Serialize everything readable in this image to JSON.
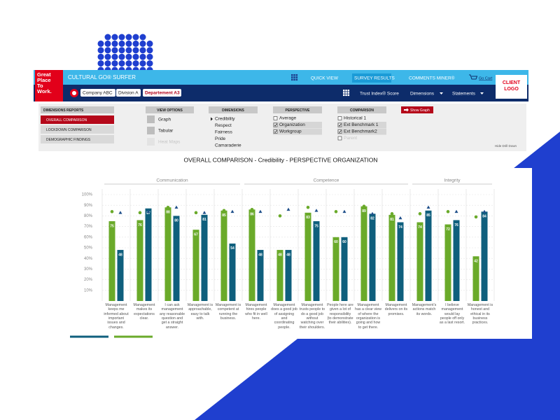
{
  "app": {
    "logo": [
      "Great",
      "Place",
      "To",
      "Work."
    ],
    "title": "CULTURAL GO® SURFER",
    "nav": [
      "QUICK VIEW",
      "SURVEY RESULTS",
      "COMMENTS MINER®"
    ],
    "cart": "Go Cart",
    "client_logo": [
      "CLIENT",
      "LOGO"
    ],
    "breadcrumbs": [
      "Company ABC",
      "Division A",
      "Departement A3"
    ],
    "subnav": [
      "Trust Index® Score",
      "Dimensions",
      "Statements"
    ],
    "reports": {
      "title": "DIMENSIONS REPORTS",
      "items": [
        "OVERALL COMPARISON",
        "LOCKDOWN COMPARISON",
        "DEMOGRAPHIC FINDINGS"
      ]
    },
    "view_options": {
      "title": "VIEW OPTIONS",
      "items": [
        "Graph",
        "Tabular",
        "Heat Maps"
      ]
    },
    "dimensions": {
      "title": "DIMENSIONS",
      "items": [
        "Credibility",
        "Respect",
        "Fairness",
        "Pride",
        "Camaraderie"
      ]
    },
    "perspective": {
      "title": "PERSPECTIVE",
      "items": [
        {
          "label": "Average",
          "checked": false
        },
        {
          "label": "Organization",
          "checked": true
        },
        {
          "label": "Workgroup",
          "checked": true
        }
      ]
    },
    "comparison": {
      "title": "COMPARISON",
      "items": [
        {
          "label": "Historical 1",
          "checked": false
        },
        {
          "label": "Ext Benchmark 1",
          "checked": true
        },
        {
          "label": "Ext Benchmark2",
          "checked": true
        },
        {
          "label": "Parent",
          "checked": false
        }
      ]
    },
    "show_graph": "Show Graph",
    "hide_drill_down": "Hide Drill Down"
  },
  "chart_data": {
    "type": "bar",
    "title": "OVERALL COMPARISON - Credibility - PERSPECTIVE ORGANIZATION",
    "groups": [
      {
        "label": "Communication",
        "categories": [
          "Management keeps me informed about important issues and changes.",
          "Management makes its expectations clear.",
          "I can ask management any reasonable question and get a straight answer.",
          "Management is approachable, easy to talk with.",
          "Management is competent at running the business."
        ]
      },
      {
        "label": "Competence",
        "categories": [
          "Management hires people who fit in well here.",
          "Management does a good job of assigning and coordinating people.",
          "Management trusts people to do a good job without watching over their shoulders.",
          "People here are given a lot of responsibility (to demonstrate their abilities).",
          "Management has a clear view of where the organization is going and how to get there.",
          "Management delivers on its promises."
        ]
      },
      {
        "label": "Integrity",
        "categories": [
          "Management's actions match its words.",
          "I believe management would lay people off only as a last resort.",
          "Management is honest and ethical in its business practices."
        ]
      }
    ],
    "series": [
      {
        "color": "#6aaa2a",
        "values": [
          75,
          76,
          88,
          67,
          85,
          86,
          48,
          83,
          60,
          89,
          81,
          74,
          72,
          42
        ]
      },
      {
        "color": "#0f5f7d",
        "values": [
          48,
          87,
          80,
          81,
          54,
          48,
          48,
          75,
          60,
          82,
          74,
          85,
          76,
          84
        ]
      }
    ],
    "markers": [
      {
        "color": "#6aaa2a",
        "shape": "circle",
        "values": [
          84,
          83,
          88,
          83,
          85,
          86,
          80,
          88,
          84,
          89,
          82,
          82,
          84,
          79
        ]
      },
      {
        "color": "#1f4f8a",
        "shape": "triangle",
        "values": [
          83,
          84,
          88,
          83,
          84,
          84,
          86,
          85,
          84,
          82,
          78,
          88,
          84,
          84
        ]
      }
    ],
    "ylim": [
      0,
      100
    ],
    "yticks": [
      {
        "value": 10,
        "label": "10%"
      },
      {
        "value": 20,
        "label": "20%"
      },
      {
        "value": 30,
        "label": "30%"
      },
      {
        "value": 40,
        "label": "40%"
      },
      {
        "value": 50,
        "label": "50%"
      },
      {
        "value": 60,
        "label": "60%"
      },
      {
        "value": 70,
        "label": "70%"
      },
      {
        "value": 80,
        "label": "80%"
      },
      {
        "value": 90,
        "label": "90%"
      },
      {
        "value": 100,
        "label": "100%"
      }
    ],
    "grid": true
  }
}
